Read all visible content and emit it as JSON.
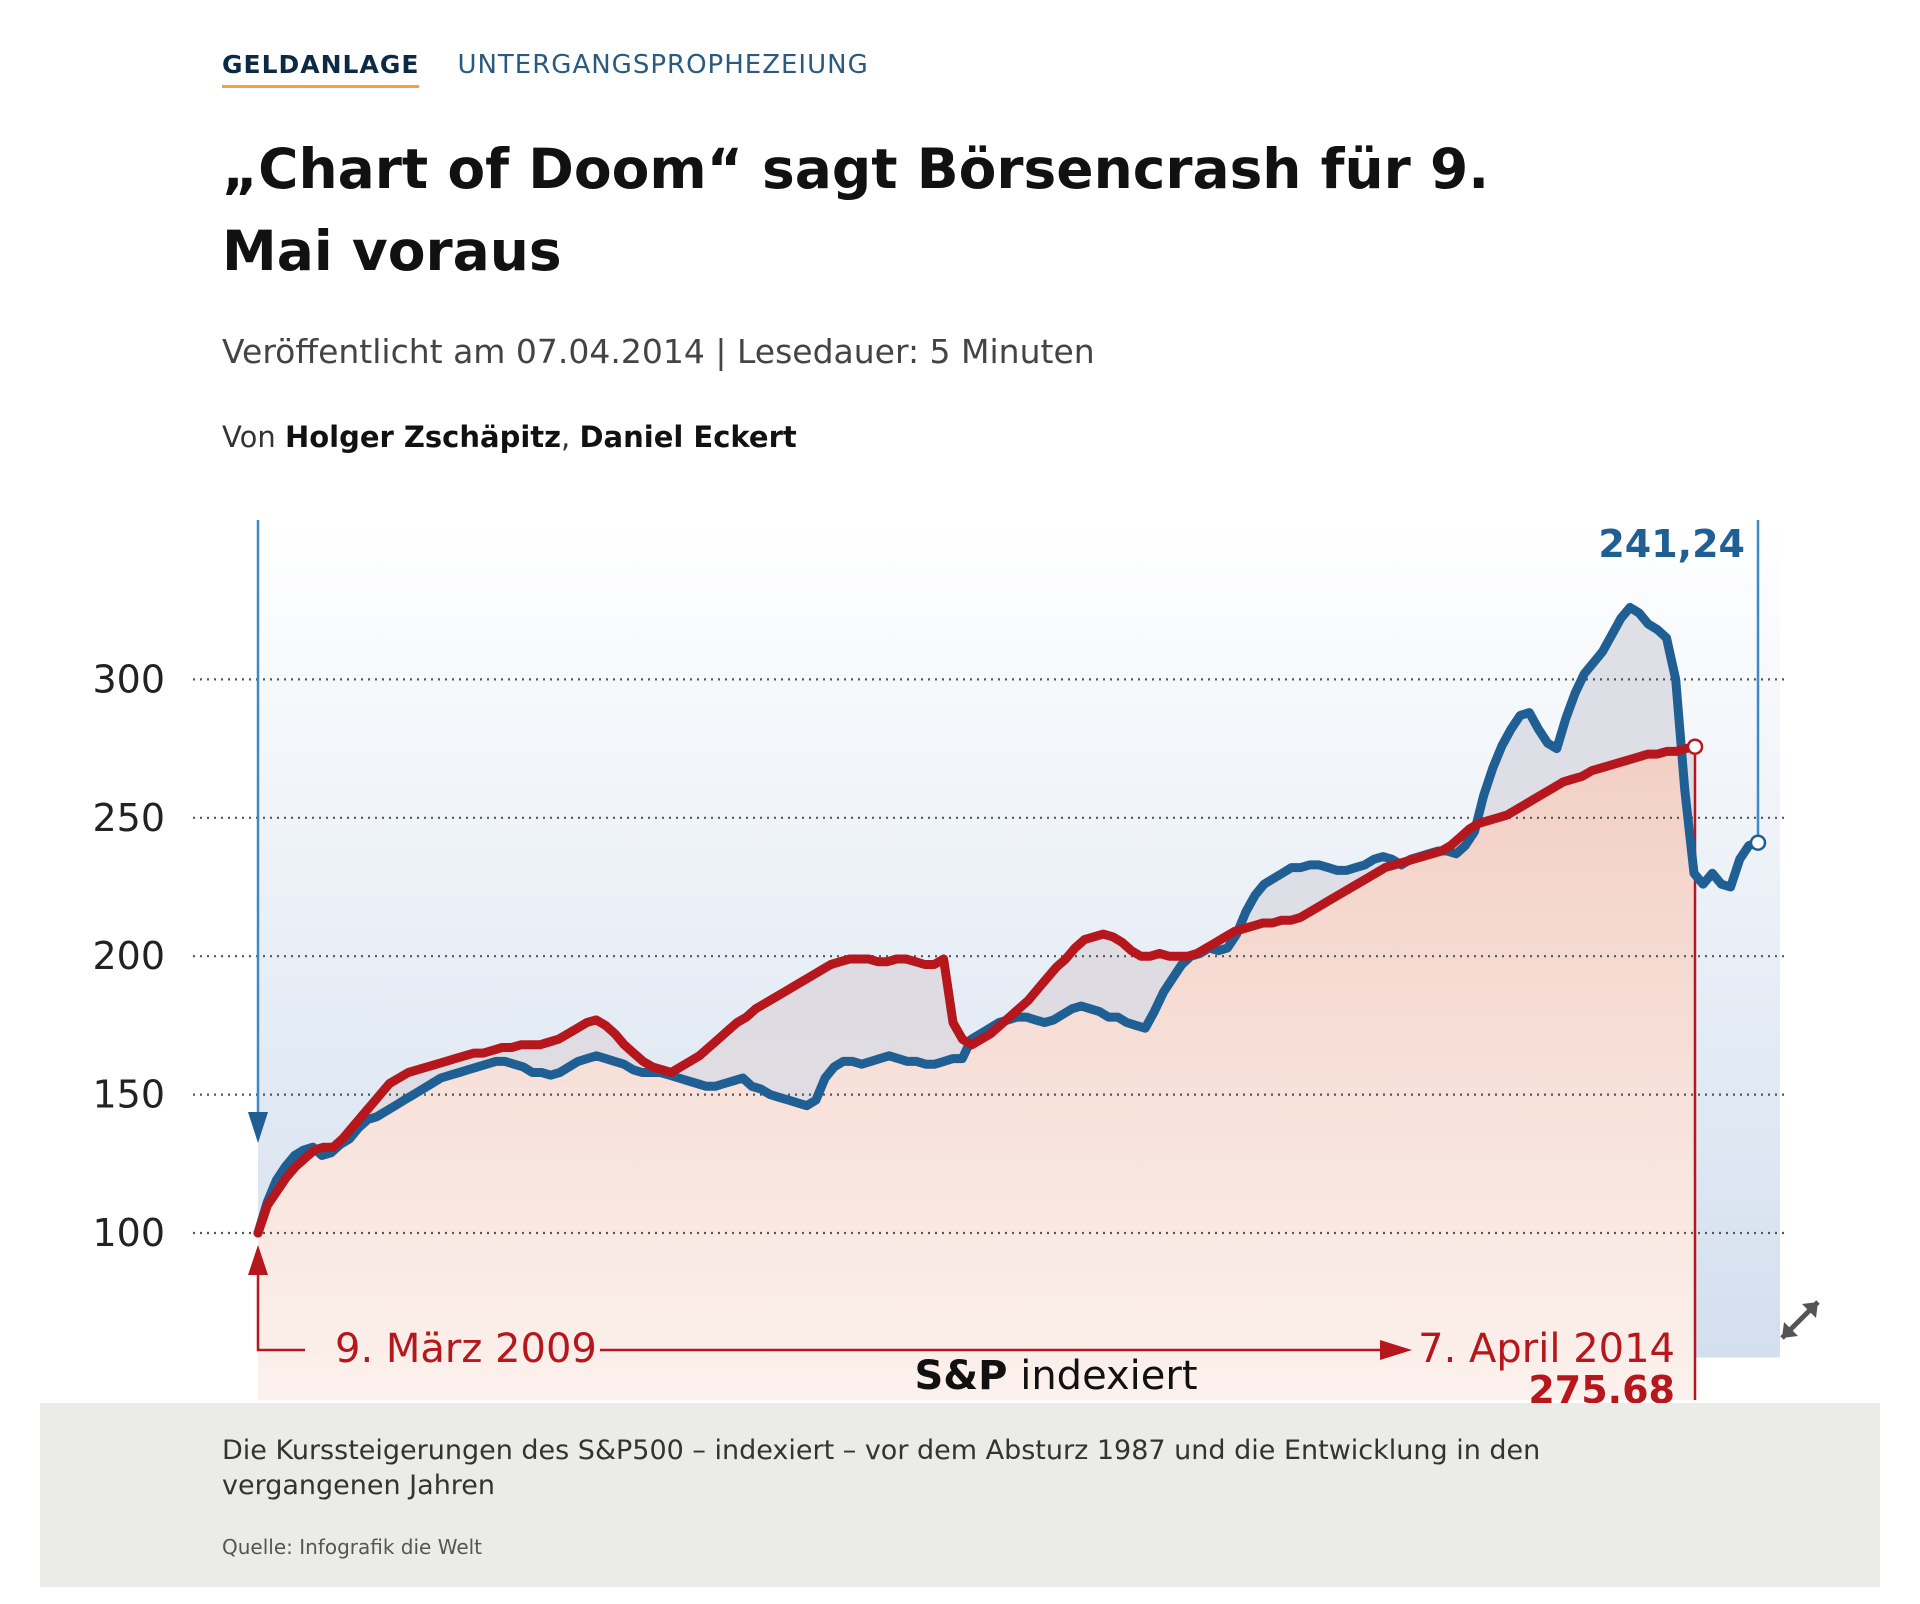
{
  "breadcrumb": {
    "section": "GELDANLAGE",
    "topic": "UNTERGANGSPROPHEZEIUNG"
  },
  "article": {
    "headline": "„Chart of Doom“ sagt Börsencrash für 9. Mai voraus",
    "meta": "Veröffentlicht am 07.04.2014 | Lesedauer: 5 Minuten",
    "author_prefix": "Von ",
    "author_1": "Holger Zschäpitz",
    "author_sep": ", ",
    "author_2": "Daniel Eckert"
  },
  "caption": {
    "text": "Die Kurssteigerungen des S&P500 – indexiert – vor dem Absturz 1987 und die Entwicklung in den vergangenen Jahren",
    "source": "Quelle: Infografik die Welt"
  },
  "icons": {
    "expand": "expand-arrows-icon"
  },
  "colors": {
    "blue_series": "#1f5f94",
    "red_series": "#b5171c",
    "grid": "#555555",
    "caption_bg": "#ebebe8"
  },
  "chart_data": {
    "type": "line",
    "ylim": [
      55,
      345
    ],
    "yticks": [
      100,
      150,
      200,
      250,
      300
    ],
    "grid": true,
    "xlabel_bold": "S&P",
    "xlabel_rest": " indexiert",
    "annotations": {
      "start_label": "9. März 2009",
      "end_label": "7. April 2014",
      "end_value": "275.68",
      "blue_end_value": "241,24"
    },
    "series": [
      {
        "color": "blue",
        "values": [
          100,
          111,
          119,
          124,
          128,
          130,
          131,
          128,
          129,
          132,
          134,
          138,
          141,
          142,
          144,
          146,
          148,
          150,
          152,
          154,
          156,
          157,
          158,
          159,
          160,
          161,
          162,
          162,
          161,
          160,
          158,
          158,
          157,
          158,
          160,
          162,
          163,
          164,
          163,
          162,
          161,
          159,
          158,
          158,
          158,
          157,
          156,
          155,
          154,
          153,
          153,
          154,
          155,
          156,
          153,
          152,
          150,
          149,
          148,
          147,
          146,
          148,
          156,
          160,
          162,
          162,
          161,
          162,
          163,
          164,
          163,
          162,
          162,
          161,
          161,
          162,
          163,
          163,
          170,
          172,
          174,
          176,
          177,
          178,
          178,
          177,
          176,
          177,
          179,
          181,
          182,
          181,
          180,
          178,
          178,
          176,
          175,
          174,
          180,
          187,
          192,
          197,
          200,
          201,
          203,
          202,
          203,
          208,
          216,
          222,
          226,
          228,
          230,
          232,
          232,
          233,
          233,
          232,
          231,
          231,
          232,
          233,
          235,
          236,
          235,
          233,
          235,
          236,
          237,
          238,
          238,
          237,
          240,
          245,
          258,
          268,
          276,
          282,
          287,
          288,
          282,
          277,
          275,
          286,
          295,
          302,
          306,
          310,
          316,
          322,
          326,
          324,
          320,
          318,
          315,
          300,
          260,
          230,
          226,
          230,
          226,
          225,
          235,
          240,
          241
        ]
      },
      {
        "color": "red",
        "values": [
          100,
          110,
          115,
          120,
          124,
          127,
          130,
          131,
          131,
          134,
          138,
          142,
          146,
          150,
          154,
          156,
          158,
          159,
          160,
          161,
          162,
          163,
          164,
          165,
          165,
          166,
          167,
          167,
          168,
          168,
          168,
          169,
          170,
          172,
          174,
          176,
          177,
          175,
          172,
          168,
          165,
          162,
          160,
          159,
          158,
          160,
          162,
          164,
          167,
          170,
          173,
          176,
          178,
          181,
          183,
          185,
          187,
          189,
          191,
          193,
          195,
          197,
          198,
          199,
          199,
          199,
          198,
          198,
          199,
          199,
          198,
          197,
          197,
          199,
          176,
          170,
          168,
          170,
          172,
          175,
          178,
          181,
          184,
          188,
          192,
          196,
          199,
          203,
          206,
          207,
          208,
          207,
          205,
          202,
          200,
          200,
          201,
          200,
          200,
          200,
          201,
          203,
          205,
          207,
          209,
          210,
          211,
          212,
          212,
          213,
          213,
          214,
          216,
          218,
          220,
          222,
          224,
          226,
          228,
          230,
          232,
          233,
          234,
          235,
          236,
          237,
          238,
          240,
          243,
          246,
          248,
          249,
          250,
          251,
          253,
          255,
          257,
          259,
          261,
          263,
          264,
          265,
          267,
          268,
          269,
          270,
          271,
          272,
          273,
          273,
          274,
          274,
          275,
          275.68
        ]
      }
    ]
  }
}
